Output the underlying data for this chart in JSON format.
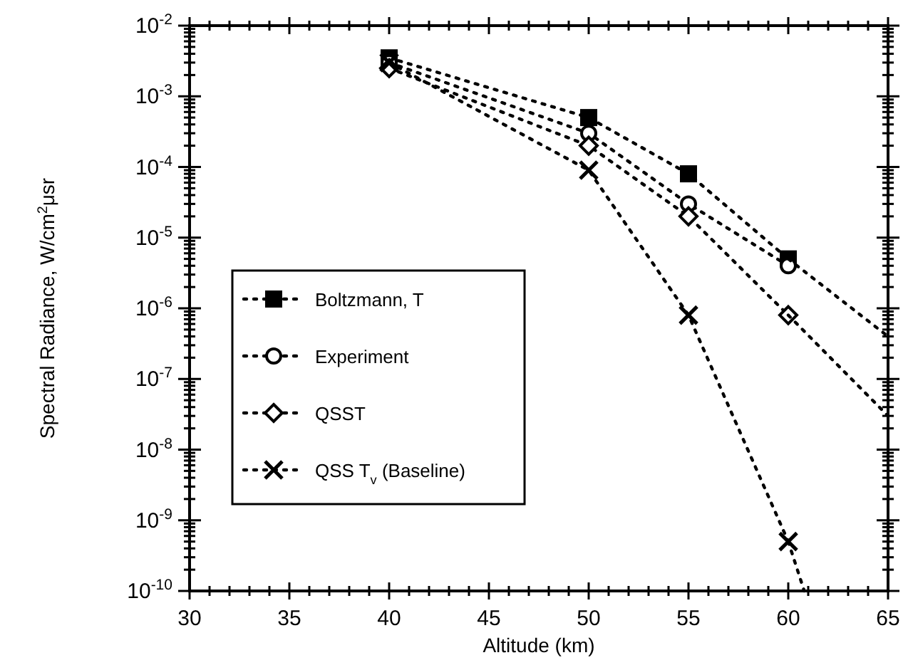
{
  "chart_data": {
    "type": "line",
    "xlabel": "Altitude  (km)",
    "ylabel": "Spectral  Radiance, W/cm$^{2}$μsr",
    "log": "y",
    "xlim": [
      30,
      65
    ],
    "ylim": [
      1e-10,
      0.01
    ],
    "xticks": [
      30,
      {
        "value": 31,
        "label": null
      },
      {
        "value": 32,
        "label": null
      },
      {
        "value": 33,
        "label": null
      },
      {
        "value": 34,
        "label": null
      },
      35,
      {
        "value": 36,
        "label": null
      },
      {
        "value": 37,
        "label": null
      },
      {
        "value": 38,
        "label": null
      },
      {
        "value": 39,
        "label": null
      },
      40,
      {
        "value": 41,
        "label": null
      },
      {
        "value": 42,
        "label": null
      },
      {
        "value": 43,
        "label": null
      },
      {
        "value": 44,
        "label": null
      },
      45,
      {
        "value": 46,
        "label": null
      },
      {
        "value": 47,
        "label": null
      },
      {
        "value": 48,
        "label": null
      },
      {
        "value": 49,
        "label": null
      },
      50,
      {
        "value": 51,
        "label": null
      },
      {
        "value": 52,
        "label": null
      },
      {
        "value": 53,
        "label": null
      },
      {
        "value": 54,
        "label": null
      },
      55,
      {
        "value": 56,
        "label": null
      },
      {
        "value": 57,
        "label": null
      },
      {
        "value": 58,
        "label": null
      },
      {
        "value": 59,
        "label": null
      },
      60,
      {
        "value": 61,
        "label": null
      },
      {
        "value": 62,
        "label": null
      },
      {
        "value": 63,
        "label": null
      },
      {
        "value": 64,
        "label": null
      },
      65
    ],
    "yticks": [
      {
        "value": 1e-10,
        "label": "10$^{-10}$"
      },
      {
        "value": 2e-10,
        "label": null
      },
      {
        "value": 3e-10,
        "label": null
      },
      {
        "value": 4e-10,
        "label": null
      },
      {
        "value": 5e-10,
        "label": null
      },
      {
        "value": 6e-10,
        "label": null
      },
      {
        "value": 7e-10,
        "label": null
      },
      {
        "value": 8e-10,
        "label": null
      },
      {
        "value": 9e-10,
        "label": null
      },
      {
        "value": 1e-09,
        "label": "10$^{-9}$"
      },
      {
        "value": 2e-09,
        "label": null
      },
      {
        "value": 3e-09,
        "label": null
      },
      {
        "value": 4e-09,
        "label": null
      },
      {
        "value": 5e-09,
        "label": null
      },
      {
        "value": 6e-09,
        "label": null
      },
      {
        "value": 7e-09,
        "label": null
      },
      {
        "value": 8e-09,
        "label": null
      },
      {
        "value": 9e-09,
        "label": null
      },
      {
        "value": 1e-08,
        "label": "10$^{-8}$"
      },
      {
        "value": 2e-08,
        "label": null
      },
      {
        "value": 3e-08,
        "label": null
      },
      {
        "value": 4e-08,
        "label": null
      },
      {
        "value": 5e-08,
        "label": null
      },
      {
        "value": 6e-08,
        "label": null
      },
      {
        "value": 7e-08,
        "label": null
      },
      {
        "value": 8e-08,
        "label": null
      },
      {
        "value": 9e-08,
        "label": null
      },
      {
        "value": 1e-07,
        "label": "10$^{-7}$"
      },
      {
        "value": 2e-07,
        "label": null
      },
      {
        "value": 3e-07,
        "label": null
      },
      {
        "value": 4e-07,
        "label": null
      },
      {
        "value": 5e-07,
        "label": null
      },
      {
        "value": 6e-07,
        "label": null
      },
      {
        "value": 7e-07,
        "label": null
      },
      {
        "value": 8e-07,
        "label": null
      },
      {
        "value": 9e-07,
        "label": null
      },
      {
        "value": 1e-06,
        "label": "10$^{-6}$"
      },
      {
        "value": 2e-06,
        "label": null
      },
      {
        "value": 3e-06,
        "label": null
      },
      {
        "value": 4e-06,
        "label": null
      },
      {
        "value": 5e-06,
        "label": null
      },
      {
        "value": 6e-06,
        "label": null
      },
      {
        "value": 7e-06,
        "label": null
      },
      {
        "value": 8e-06,
        "label": null
      },
      {
        "value": 9e-06,
        "label": null
      },
      {
        "value": 1e-05,
        "label": "10$^{-5}$"
      },
      {
        "value": 2e-05,
        "label": null
      },
      {
        "value": 3e-05,
        "label": null
      },
      {
        "value": 4e-05,
        "label": null
      },
      {
        "value": 5e-05,
        "label": null
      },
      {
        "value": 6e-05,
        "label": null
      },
      {
        "value": 7e-05,
        "label": null
      },
      {
        "value": 8e-05,
        "label": null
      },
      {
        "value": 9e-05,
        "label": null
      },
      {
        "value": 0.0001,
        "label": "10$^{-4}$"
      },
      {
        "value": 0.0002,
        "label": null
      },
      {
        "value": 0.0003,
        "label": null
      },
      {
        "value": 0.0004,
        "label": null
      },
      {
        "value": 0.0005,
        "label": null
      },
      {
        "value": 0.0006,
        "label": null
      },
      {
        "value": 0.0007,
        "label": null
      },
      {
        "value": 0.0008,
        "label": null
      },
      {
        "value": 0.0009,
        "label": null
      },
      {
        "value": 0.001,
        "label": "10$^{-3}$"
      },
      {
        "value": 0.002,
        "label": null
      },
      {
        "value": 0.003,
        "label": null
      },
      {
        "value": 0.004,
        "label": null
      },
      {
        "value": 0.005,
        "label": null
      },
      {
        "value": 0.006,
        "label": null
      },
      {
        "value": 0.007,
        "label": null
      },
      {
        "value": 0.008,
        "label": null
      },
      {
        "value": 0.009,
        "label": null
      },
      {
        "value": 0.01,
        "label": "10$^{-2}$"
      }
    ],
    "grid": false,
    "legend": "left",
    "line_style": "dotted",
    "series": [
      {
        "name": "Boltzmann,  T",
        "color": "#000000",
        "marker": "square",
        "x": [
          40,
          50,
          55,
          60
        ],
        "values": [
          0.0035,
          0.0005,
          8e-05,
          5e-06
        ]
      },
      {
        "name": "Experiment",
        "color": "#000000",
        "marker": "circle",
        "x": [
          40,
          50,
          55,
          60
        ],
        "values": [
          0.003,
          0.0003,
          3e-05,
          4e-06
        ]
      },
      {
        "name": "QSST",
        "color": "#000000",
        "marker": "diamond",
        "x": [
          40,
          50,
          55,
          60
        ],
        "values": [
          0.0025,
          0.0002,
          2e-05,
          8e-07
        ]
      },
      {
        "name": "QSS T$_{v}$ (Baseline)",
        "color": "#000000",
        "marker": "cross",
        "x": [
          40,
          50,
          55,
          60
        ],
        "values": [
          0.003,
          9e-05,
          8e-07,
          5e-10
        ]
      },
      {
        "color": "#000000",
        "marker": "none",
        "x": [
          60,
          65
        ],
        "values": [
          5e-06,
          4e-07
        ]
      },
      {
        "color": "#000000",
        "marker": "none",
        "x": [
          60,
          65
        ],
        "values": [
          8e-07,
          3e-08
        ]
      },
      {
        "color": "#000000",
        "marker": "none",
        "x": [
          60,
          60.8
        ],
        "values": [
          5e-10,
          1e-10
        ]
      }
    ]
  }
}
